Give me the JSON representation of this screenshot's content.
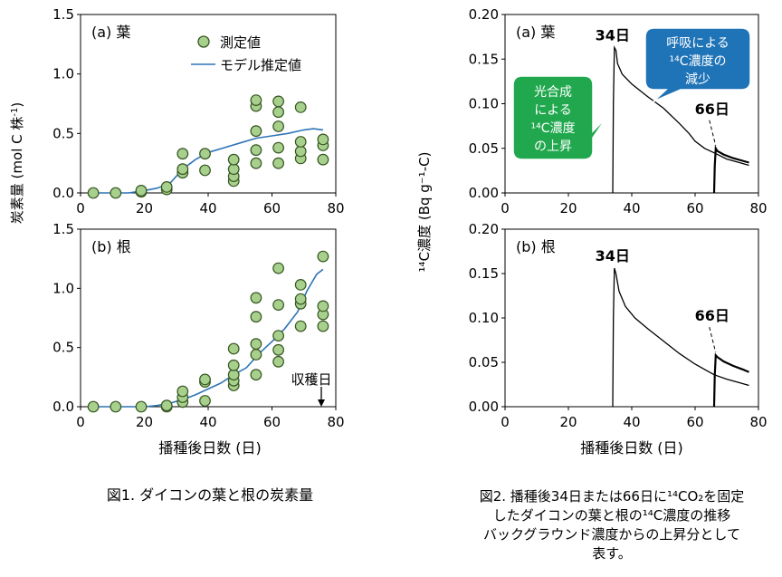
{
  "fig1": {
    "caption": "図1. ダイコンの葉と根の炭素量",
    "ylabel": "炭素量 (mol C 株",
    "ylabel_sup": "-1",
    "ylabel_end": ")",
    "xlabel": "播種後日数 (日)",
    "harvest_label": "収穫日"
  },
  "fig2": {
    "caption_lines": [
      "図2. 播種後34日または66日に¹⁴CO₂を固定",
      "したダイコンの葉と根の¹⁴C濃度の推移",
      "バックグラウンド濃度からの上昇分として",
      "表す。"
    ],
    "ylabel": "¹⁴C濃度 (Bq g⁻¹-C)",
    "xlabel": "播種後日数 (日)",
    "callout_photosynthesis": [
      "光合成",
      "による",
      "¹⁴C濃度",
      "の上昇"
    ],
    "callout_respiration": [
      "呼吸による",
      "¹⁴C濃度の",
      "減少"
    ]
  },
  "colors": {
    "marker_fill": "#a8d08d",
    "marker_stroke": "#375623",
    "model_line": "#2e75b6",
    "callout_green": "#21a84e",
    "callout_blue": "#1f73b7"
  },
  "chart_data": [
    {
      "id": "fig1a",
      "type": "scatter",
      "panel_label": "(a) 葉",
      "legend": [
        "測定値",
        "モデル推定値"
      ],
      "xlim": [
        0,
        80
      ],
      "ylim": [
        0,
        1.5
      ],
      "xticks": [
        "0",
        "20",
        "40",
        "60",
        "80"
      ],
      "yticks": [
        "0.0",
        "0.5",
        "1.0",
        "1.5"
      ],
      "points": [
        [
          4,
          0
        ],
        [
          11,
          0
        ],
        [
          19,
          0.01
        ],
        [
          19,
          0.02
        ],
        [
          27,
          0.03
        ],
        [
          27,
          0.05
        ],
        [
          32,
          0.17
        ],
        [
          32,
          0.2
        ],
        [
          32,
          0.33
        ],
        [
          39,
          0.19
        ],
        [
          39,
          0.33
        ],
        [
          48,
          0.1
        ],
        [
          48,
          0.14
        ],
        [
          48,
          0.2
        ],
        [
          48,
          0.28
        ],
        [
          55,
          0.25
        ],
        [
          55,
          0.36
        ],
        [
          55,
          0.52
        ],
        [
          55,
          0.73
        ],
        [
          55,
          0.78
        ],
        [
          62,
          0.25
        ],
        [
          62,
          0.38
        ],
        [
          62,
          0.56
        ],
        [
          62,
          0.68
        ],
        [
          62,
          0.77
        ],
        [
          69,
          0.29
        ],
        [
          69,
          0.35
        ],
        [
          69,
          0.43
        ],
        [
          69,
          0.72
        ],
        [
          76,
          0.28
        ],
        [
          76,
          0.4
        ],
        [
          76,
          0.45
        ]
      ],
      "model": [
        [
          4,
          0
        ],
        [
          15,
          0
        ],
        [
          20,
          0.02
        ],
        [
          24,
          0.04
        ],
        [
          28,
          0.08
        ],
        [
          30,
          0.14
        ],
        [
          33,
          0.22
        ],
        [
          36,
          0.28
        ],
        [
          40,
          0.34
        ],
        [
          45,
          0.38
        ],
        [
          50,
          0.42
        ],
        [
          55,
          0.46
        ],
        [
          60,
          0.48
        ],
        [
          65,
          0.5
        ],
        [
          70,
          0.53
        ],
        [
          73,
          0.54
        ],
        [
          76,
          0.53
        ]
      ]
    },
    {
      "id": "fig1b",
      "type": "scatter",
      "panel_label": "(b) 根",
      "xlim": [
        0,
        80
      ],
      "ylim": [
        0,
        1.5
      ],
      "xticks": [
        "0",
        "20",
        "40",
        "60",
        "80"
      ],
      "yticks": [
        "0.0",
        "0.5",
        "1.0",
        "1.5"
      ],
      "points": [
        [
          4,
          0
        ],
        [
          11,
          0
        ],
        [
          19,
          0
        ],
        [
          27,
          0
        ],
        [
          27,
          0.01
        ],
        [
          32,
          0.04
        ],
        [
          32,
          0.08
        ],
        [
          32,
          0.13
        ],
        [
          39,
          0.05
        ],
        [
          39,
          0.21
        ],
        [
          39,
          0.23
        ],
        [
          48,
          0.18
        ],
        [
          48,
          0.22
        ],
        [
          48,
          0.27
        ],
        [
          48,
          0.35
        ],
        [
          48,
          0.49
        ],
        [
          55,
          0.27
        ],
        [
          55,
          0.44
        ],
        [
          55,
          0.53
        ],
        [
          55,
          0.76
        ],
        [
          55,
          0.92
        ],
        [
          62,
          0.38
        ],
        [
          62,
          0.48
        ],
        [
          62,
          0.6
        ],
        [
          62,
          0.86
        ],
        [
          62,
          1.17
        ],
        [
          69,
          0.68
        ],
        [
          69,
          0.87
        ],
        [
          69,
          0.91
        ],
        [
          69,
          1.03
        ],
        [
          76,
          0.68
        ],
        [
          76,
          0.78
        ],
        [
          76,
          0.85
        ],
        [
          76,
          1.27
        ]
      ],
      "model": [
        [
          4,
          0
        ],
        [
          20,
          0
        ],
        [
          24,
          0.01
        ],
        [
          28,
          0.03
        ],
        [
          32,
          0.06
        ],
        [
          36,
          0.1
        ],
        [
          40,
          0.15
        ],
        [
          44,
          0.2
        ],
        [
          48,
          0.27
        ],
        [
          52,
          0.33
        ],
        [
          56,
          0.45
        ],
        [
          60,
          0.55
        ],
        [
          64,
          0.66
        ],
        [
          68,
          0.8
        ],
        [
          71,
          0.98
        ],
        [
          74,
          1.12
        ],
        [
          76,
          1.16
        ]
      ],
      "harvest_day": 76
    },
    {
      "id": "fig2a",
      "type": "line",
      "panel_label": "(a) 葉",
      "xlim": [
        0,
        80
      ],
      "ylim": [
        0,
        0.2
      ],
      "xticks": [
        "0",
        "20",
        "40",
        "60",
        "80"
      ],
      "yticks": [
        "0.00",
        "0.05",
        "0.10",
        "0.15",
        "0.20"
      ],
      "peak_label_1": "34日",
      "peak_label_2": "66日",
      "series": [
        {
          "values": [
            [
              34,
              0
            ],
            [
              34.2,
              0.1
            ],
            [
              34.5,
              0.163
            ],
            [
              35,
              0.16
            ],
            [
              35.5,
              0.145
            ],
            [
              37,
              0.133
            ],
            [
              40,
              0.122
            ],
            [
              45,
              0.108
            ],
            [
              50,
              0.095
            ],
            [
              55,
              0.078
            ],
            [
              58,
              0.067
            ],
            [
              60,
              0.058
            ],
            [
              63,
              0.05
            ],
            [
              66,
              0.045
            ],
            [
              70,
              0.038
            ],
            [
              74,
              0.034
            ],
            [
              77,
              0.031
            ]
          ]
        },
        {
          "values": [
            [
              66,
              0
            ],
            [
              66.2,
              0.03
            ],
            [
              66.5,
              0.05
            ],
            [
              67,
              0.047
            ],
            [
              69,
              0.043
            ],
            [
              72,
              0.039
            ],
            [
              75,
              0.036
            ],
            [
              77,
              0.034
            ]
          ]
        }
      ]
    },
    {
      "id": "fig2b",
      "type": "line",
      "panel_label": "(b) 根",
      "xlim": [
        0,
        80
      ],
      "ylim": [
        0,
        0.2
      ],
      "xticks": [
        "0",
        "20",
        "40",
        "60",
        "80"
      ],
      "yticks": [
        "0.00",
        "0.05",
        "0.10",
        "0.15",
        "0.20"
      ],
      "peak_label_1": "34日",
      "peak_label_2": "66日",
      "series": [
        {
          "values": [
            [
              34,
              0
            ],
            [
              34.2,
              0.1
            ],
            [
              34.5,
              0.156
            ],
            [
              35,
              0.15
            ],
            [
              36,
              0.13
            ],
            [
              38,
              0.113
            ],
            [
              41,
              0.1
            ],
            [
              45,
              0.088
            ],
            [
              50,
              0.074
            ],
            [
              55,
              0.06
            ],
            [
              60,
              0.048
            ],
            [
              64,
              0.04
            ],
            [
              66,
              0.036
            ],
            [
              70,
              0.031
            ],
            [
              74,
              0.027
            ],
            [
              77,
              0.024
            ]
          ]
        },
        {
          "values": [
            [
              66,
              0
            ],
            [
              66.2,
              0.035
            ],
            [
              66.5,
              0.058
            ],
            [
              67,
              0.056
            ],
            [
              69,
              0.051
            ],
            [
              72,
              0.046
            ],
            [
              75,
              0.042
            ],
            [
              77,
              0.039
            ]
          ]
        }
      ]
    }
  ]
}
